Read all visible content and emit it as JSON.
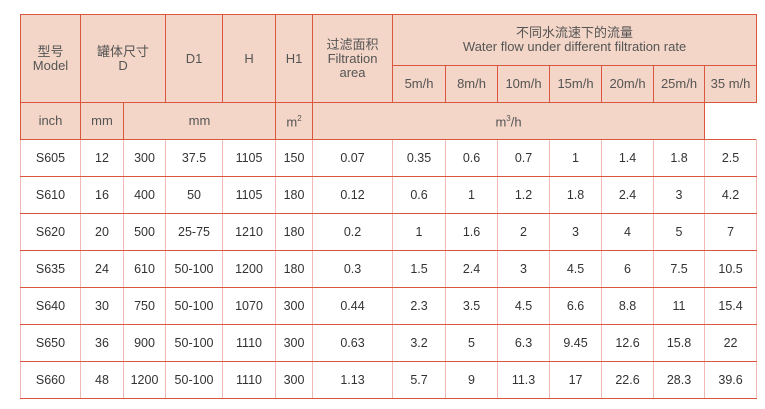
{
  "header": {
    "model": [
      "型号",
      "Model"
    ],
    "tank": [
      "罐体尺寸",
      "D"
    ],
    "d1": "D1",
    "h": "H",
    "h1": "H1",
    "area": [
      "过滤面积",
      "Filtration",
      "area"
    ],
    "flow": [
      "不同水流速下的流量",
      "Water flow under different filtration rate"
    ],
    "rates": [
      "5m/h",
      "8m/h",
      "10m/h",
      "15m/h",
      "20m/h",
      "25m/h",
      "35 m/h"
    ],
    "units": {
      "inch": "inch",
      "mm": "mm",
      "dims": "mm",
      "area": "m",
      "area_sup": "2",
      "flow": "m",
      "flow_sup": "3",
      "flow_tail": "/h"
    }
  },
  "rows": [
    [
      "S605",
      "12",
      "300",
      "37.5",
      "1105",
      "150",
      "0.07",
      "0.35",
      "0.6",
      "0.7",
      "1",
      "1.4",
      "1.8",
      "2.5"
    ],
    [
      "S610",
      "16",
      "400",
      "50",
      "1105",
      "180",
      "0.12",
      "0.6",
      "1",
      "1.2",
      "1.8",
      "2.4",
      "3",
      "4.2"
    ],
    [
      "S620",
      "20",
      "500",
      "25-75",
      "1210",
      "180",
      "0.2",
      "1",
      "1.6",
      "2",
      "3",
      "4",
      "5",
      "7"
    ],
    [
      "S635",
      "24",
      "610",
      "50-100",
      "1200",
      "180",
      "0.3",
      "1.5",
      "2.4",
      "3",
      "4.5",
      "6",
      "7.5",
      "10.5"
    ],
    [
      "S640",
      "30",
      "750",
      "50-100",
      "1070",
      "300",
      "0.44",
      "2.3",
      "3.5",
      "4.5",
      "6.6",
      "8.8",
      "11",
      "15.4"
    ],
    [
      "S650",
      "36",
      "900",
      "50-100",
      "1110",
      "300",
      "0.63",
      "3.2",
      "5",
      "6.3",
      "9.45",
      "12.6",
      "15.8",
      "22"
    ],
    [
      "S660",
      "48",
      "1200",
      "50-100",
      "1110",
      "300",
      "1.13",
      "5.7",
      "9",
      "11.3",
      "17",
      "22.6",
      "28.3",
      "39.6"
    ]
  ]
}
